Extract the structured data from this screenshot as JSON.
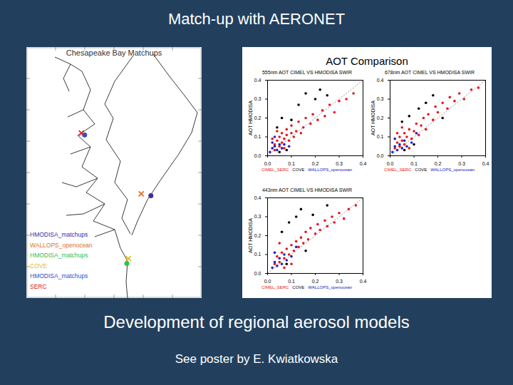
{
  "slide": {
    "title": "Match-up with AERONET",
    "panel_title": "AOT Comparison",
    "caption": "Development of regional aerosol models",
    "note": "See poster by E. Kwiatkowska"
  },
  "map": {
    "title": "Chesapeake Bay Matchups",
    "lon_range": [
      -77.62,
      -74.34
    ],
    "lat_range": [
      36.27,
      40.27
    ],
    "sites": [
      {
        "name": "HMODISA_matchups",
        "color": "#3a2fa0",
        "marker": "circle",
        "lon": -75.29,
        "lat": 37.9
      },
      {
        "name": "WALLOPS_openocean",
        "color": "#e07020",
        "marker": "x",
        "lon": -75.47,
        "lat": 37.93
      },
      {
        "name": "HMODISA_matchups",
        "color": "#30c050",
        "marker": "circle",
        "lon": -75.74,
        "lat": 36.82
      },
      {
        "name": "COVE",
        "color": "#e0c020",
        "marker": "x",
        "lon": -75.71,
        "lat": 36.9
      },
      {
        "name": "HMODISA_matchups",
        "color": "#3050d0",
        "marker": "circle",
        "lon": -76.53,
        "lat": 38.87
      },
      {
        "name": "SERC",
        "color": "#e02020",
        "marker": "x",
        "lon": -76.59,
        "lat": 38.9
      }
    ]
  },
  "chart_data": [
    {
      "type": "scatter",
      "title": "555nm AOT CIMEL VS HMODISA SWIR",
      "y_label": "AOT HMODISA",
      "xlim": [
        0,
        0.4
      ],
      "ylim": [
        0,
        0.4
      ],
      "xticks": [
        {
          "value": 0,
          "label": "0.0"
        },
        0.1,
        0.2,
        0.3,
        0.4
      ],
      "yticks": [
        {
          "value": 0,
          "label": "0.0"
        },
        0.1,
        0.2,
        0.3,
        0.4
      ],
      "grid": false,
      "marker": "circle",
      "series": [
        {
          "name": "CIMEL_SERC",
          "color": "#e8141e",
          "values": [
            [
              0.03,
              0.06
            ],
            [
              0.04,
              0.08
            ],
            [
              0.05,
              0.05
            ],
            [
              0.05,
              0.1
            ],
            [
              0.06,
              0.07
            ],
            [
              0.06,
              0.12
            ],
            [
              0.07,
              0.09
            ],
            [
              0.07,
              0.04
            ],
            [
              0.08,
              0.11
            ],
            [
              0.08,
              0.14
            ],
            [
              0.09,
              0.08
            ],
            [
              0.1,
              0.12
            ],
            [
              0.1,
              0.16
            ],
            [
              0.11,
              0.1
            ],
            [
              0.12,
              0.13
            ],
            [
              0.13,
              0.18
            ],
            [
              0.14,
              0.12
            ],
            [
              0.15,
              0.15
            ],
            [
              0.16,
              0.2
            ],
            [
              0.18,
              0.17
            ],
            [
              0.19,
              0.22
            ],
            [
              0.21,
              0.19
            ],
            [
              0.23,
              0.24
            ],
            [
              0.24,
              0.21
            ],
            [
              0.26,
              0.27
            ],
            [
              0.28,
              0.23
            ],
            [
              0.3,
              0.29
            ],
            [
              0.33,
              0.3
            ],
            [
              0.36,
              0.33
            ],
            [
              0.02,
              0.09
            ],
            [
              0.04,
              0.13
            ],
            [
              0.03,
              0.03
            ]
          ]
        },
        {
          "name": "COVE",
          "color": "#000000",
          "values": [
            [
              0.04,
              0.15
            ],
            [
              0.06,
              0.2
            ],
            [
              0.1,
              0.19
            ],
            [
              0.13,
              0.27
            ],
            [
              0.16,
              0.33
            ],
            [
              0.2,
              0.3
            ],
            [
              0.22,
              0.35
            ],
            [
              0.25,
              0.32
            ],
            [
              0.08,
              0.03
            ],
            [
              0.05,
              0.02
            ]
          ]
        },
        {
          "name": "WALLOPS_openocean",
          "color": "#2020c0",
          "values": [
            [
              0.01,
              0.02
            ],
            [
              0.02,
              0.04
            ],
            [
              0.02,
              0.07
            ],
            [
              0.03,
              0.05
            ],
            [
              0.04,
              0.03
            ],
            [
              0.05,
              0.06
            ],
            [
              0.06,
              0.04
            ],
            [
              0.07,
              0.06
            ],
            [
              0.03,
              0.1
            ],
            [
              0.09,
              0.05
            ]
          ]
        }
      ]
    },
    {
      "type": "scatter",
      "title": "678nm AOT CIMEL VS HMODISA SWIR",
      "y_label": "AOT HMODISA",
      "xlim": [
        0,
        0.4
      ],
      "ylim": [
        0,
        0.4
      ],
      "xticks": [
        {
          "value": 0,
          "label": "0.0"
        },
        0.1,
        0.2,
        0.3,
        0.4
      ],
      "yticks": [
        {
          "value": 0,
          "label": "0.0"
        },
        0.1,
        0.2,
        0.3,
        0.4
      ],
      "grid": false,
      "marker": "circle",
      "series": [
        {
          "name": "CIMEL_SERC",
          "color": "#e8141e",
          "values": [
            [
              0.02,
              0.04
            ],
            [
              0.03,
              0.07
            ],
            [
              0.04,
              0.05
            ],
            [
              0.04,
              0.1
            ],
            [
              0.05,
              0.08
            ],
            [
              0.06,
              0.12
            ],
            [
              0.06,
              0.06
            ],
            [
              0.07,
              0.1
            ],
            [
              0.08,
              0.14
            ],
            [
              0.09,
              0.09
            ],
            [
              0.1,
              0.13
            ],
            [
              0.11,
              0.17
            ],
            [
              0.12,
              0.11
            ],
            [
              0.13,
              0.16
            ],
            [
              0.14,
              0.2
            ],
            [
              0.15,
              0.14
            ],
            [
              0.16,
              0.22
            ],
            [
              0.18,
              0.19
            ],
            [
              0.19,
              0.26
            ],
            [
              0.2,
              0.23
            ],
            [
              0.22,
              0.28
            ],
            [
              0.24,
              0.25
            ],
            [
              0.25,
              0.31
            ],
            [
              0.27,
              0.29
            ],
            [
              0.29,
              0.33
            ],
            [
              0.31,
              0.3
            ],
            [
              0.34,
              0.35
            ],
            [
              0.37,
              0.36
            ],
            [
              0.03,
              0.12
            ],
            [
              0.05,
              0.15
            ],
            [
              0.08,
              0.04
            ]
          ]
        },
        {
          "name": "COVE",
          "color": "#000000",
          "values": [
            [
              0.05,
              0.18
            ],
            [
              0.08,
              0.21
            ],
            [
              0.12,
              0.25
            ],
            [
              0.15,
              0.28
            ],
            [
              0.18,
              0.32
            ],
            [
              0.1,
              0.06
            ],
            [
              0.06,
              0.03
            ],
            [
              0.22,
              0.2
            ]
          ]
        },
        {
          "name": "WALLOPS_openocean",
          "color": "#2020c0",
          "values": [
            [
              0.01,
              0.02
            ],
            [
              0.02,
              0.05
            ],
            [
              0.03,
              0.03
            ],
            [
              0.04,
              0.06
            ],
            [
              0.05,
              0.04
            ],
            [
              0.06,
              0.08
            ],
            [
              0.07,
              0.05
            ],
            [
              0.02,
              0.09
            ],
            [
              0.09,
              0.07
            ],
            [
              0.11,
              0.12
            ]
          ]
        }
      ]
    },
    {
      "type": "scatter",
      "title": "443nm AOT CIMEL VS HMODISA SWIR",
      "y_label": "AOT HMODISA",
      "xlim": [
        0,
        0.4
      ],
      "ylim": [
        0,
        0.4
      ],
      "xticks": [
        {
          "value": 0,
          "label": "0.0"
        },
        0.1,
        0.2,
        0.3,
        0.4
      ],
      "yticks": [
        {
          "value": 0,
          "label": "0.0"
        },
        0.1,
        0.2,
        0.3,
        0.4
      ],
      "grid": false,
      "marker": "circle",
      "series": [
        {
          "name": "CIMEL_SERC",
          "color": "#e8141e",
          "values": [
            [
              0.03,
              0.05
            ],
            [
              0.04,
              0.09
            ],
            [
              0.05,
              0.06
            ],
            [
              0.06,
              0.11
            ],
            [
              0.07,
              0.08
            ],
            [
              0.08,
              0.13
            ],
            [
              0.09,
              0.1
            ],
            [
              0.1,
              0.15
            ],
            [
              0.11,
              0.12
            ],
            [
              0.12,
              0.17
            ],
            [
              0.13,
              0.14
            ],
            [
              0.14,
              0.19
            ],
            [
              0.15,
              0.16
            ],
            [
              0.16,
              0.22
            ],
            [
              0.17,
              0.18
            ],
            [
              0.18,
              0.24
            ],
            [
              0.2,
              0.21
            ],
            [
              0.21,
              0.26
            ],
            [
              0.22,
              0.23
            ],
            [
              0.24,
              0.28
            ],
            [
              0.25,
              0.25
            ],
            [
              0.27,
              0.3
            ],
            [
              0.28,
              0.27
            ],
            [
              0.3,
              0.32
            ],
            [
              0.32,
              0.29
            ],
            [
              0.34,
              0.34
            ],
            [
              0.37,
              0.36
            ],
            [
              0.05,
              0.16
            ],
            [
              0.07,
              0.03
            ],
            [
              0.1,
              0.05
            ]
          ]
        },
        {
          "name": "COVE",
          "color": "#000000",
          "values": [
            [
              0.06,
              0.22
            ],
            [
              0.09,
              0.27
            ],
            [
              0.12,
              0.3
            ],
            [
              0.14,
              0.34
            ],
            [
              0.19,
              0.31
            ],
            [
              0.25,
              0.36
            ],
            [
              0.08,
              0.05
            ],
            [
              0.16,
              0.12
            ]
          ]
        },
        {
          "name": "WALLOPS_openocean",
          "color": "#2020c0",
          "values": [
            [
              0.02,
              0.03
            ],
            [
              0.03,
              0.06
            ],
            [
              0.04,
              0.04
            ],
            [
              0.05,
              0.08
            ],
            [
              0.06,
              0.05
            ],
            [
              0.07,
              0.1
            ],
            [
              0.08,
              0.07
            ],
            [
              0.03,
              0.11
            ],
            [
              0.1,
              0.09
            ],
            [
              0.12,
              0.14
            ]
          ]
        }
      ]
    }
  ]
}
